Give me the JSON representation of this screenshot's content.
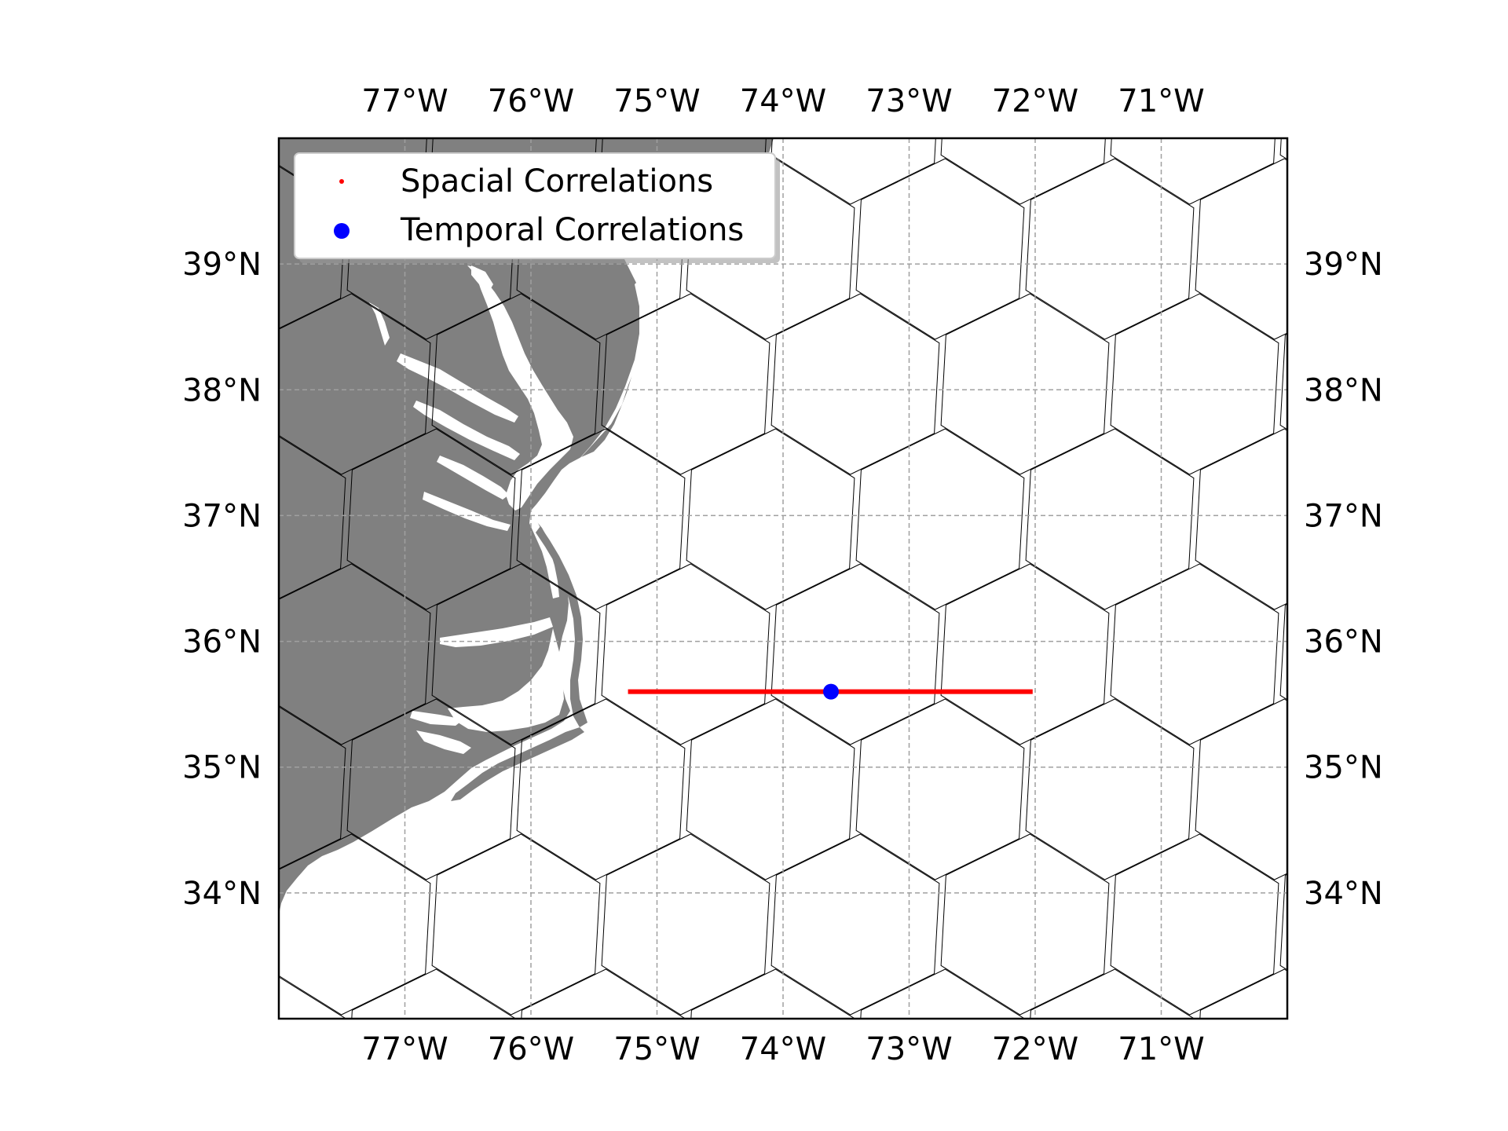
{
  "map": {
    "lon_range": [
      -78.0,
      -70.0
    ],
    "lat_range": [
      33.0,
      40.0
    ],
    "lon_ticks": [
      {
        "value": -77,
        "label": "77°W"
      },
      {
        "value": -76,
        "label": "76°W"
      },
      {
        "value": -75,
        "label": "75°W"
      },
      {
        "value": -74,
        "label": "74°W"
      },
      {
        "value": -73,
        "label": "73°W"
      },
      {
        "value": -72,
        "label": "72°W"
      },
      {
        "value": -71,
        "label": "71°W"
      }
    ],
    "lat_ticks": [
      {
        "value": 39,
        "label": "39°N"
      },
      {
        "value": 38,
        "label": "38°N"
      },
      {
        "value": 37,
        "label": "37°N"
      },
      {
        "value": 36,
        "label": "36°N"
      },
      {
        "value": 35,
        "label": "35°N"
      },
      {
        "value": 34,
        "label": "34°N"
      }
    ],
    "gridlines": true,
    "land_color": "#808080",
    "hex_grid_color": "#000000",
    "legend": {
      "placement": "upper-left",
      "entries": [
        {
          "label": "Spacial Correlations",
          "marker": "small-dot",
          "color": "#ff0000"
        },
        {
          "label": "Temporal Correlations",
          "marker": "large-dot",
          "color": "#0000ff"
        }
      ]
    },
    "spacial_correlation_line": {
      "color": "#ff0000",
      "lat": 35.6,
      "lon_start": -75.23,
      "lon_end": -72.02
    },
    "temporal_correlation_point": {
      "color": "#0000ff",
      "lon": -73.62,
      "lat": 35.6
    }
  }
}
